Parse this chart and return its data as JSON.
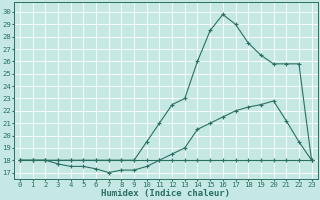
{
  "xlabel": "Humidex (Indice chaleur)",
  "bg_color": "#c5e8e5",
  "grid_color": "#ffffff",
  "line_color": "#2a7060",
  "x_ticks": [
    0,
    1,
    2,
    3,
    4,
    5,
    6,
    7,
    8,
    9,
    10,
    11,
    12,
    13,
    14,
    15,
    16,
    17,
    18,
    19,
    20,
    21,
    22,
    23
  ],
  "y_ticks": [
    17,
    18,
    19,
    20,
    21,
    22,
    23,
    24,
    25,
    26,
    27,
    28,
    29,
    30
  ],
  "ylim": [
    16.5,
    30.8
  ],
  "xlim": [
    -0.5,
    23.5
  ],
  "series": [
    {
      "x": [
        0,
        1,
        2,
        3,
        4,
        5,
        6,
        7,
        8,
        9,
        10,
        11,
        12,
        13,
        14,
        15,
        16,
        17,
        18,
        19,
        20,
        21,
        22,
        23
      ],
      "y": [
        18,
        18,
        18,
        18,
        18,
        18,
        18,
        18,
        18,
        18,
        18,
        18,
        18,
        18,
        18,
        18,
        18,
        18,
        18,
        18,
        18,
        18,
        18,
        18
      ]
    },
    {
      "x": [
        0,
        1,
        2,
        3,
        4,
        5,
        6,
        7,
        8,
        9,
        10,
        11,
        12,
        13,
        14,
        15,
        16,
        17,
        18,
        19,
        20,
        21,
        22,
        23
      ],
      "y": [
        18,
        18,
        18,
        17.7,
        17.5,
        17.5,
        17.3,
        17.0,
        17.2,
        17.2,
        17.5,
        18.0,
        18.5,
        19.0,
        20.5,
        21.0,
        21.5,
        22.0,
        22.3,
        22.5,
        22.8,
        21.2,
        19.5,
        18.0
      ]
    },
    {
      "x": [
        0,
        1,
        2,
        3,
        4,
        5,
        6,
        7,
        8,
        9,
        10,
        11,
        12,
        13,
        14,
        15,
        16,
        17,
        18,
        19,
        20,
        21,
        22,
        23
      ],
      "y": [
        18,
        18,
        18,
        18,
        18,
        18,
        18,
        18,
        18,
        18,
        19.5,
        21.0,
        22.5,
        23.0,
        26.0,
        28.5,
        29.8,
        29.0,
        27.5,
        26.5,
        25.8,
        25.8,
        25.8,
        18.0
      ]
    }
  ],
  "title_fontsize": 6.5,
  "tick_fontsize": 5.2,
  "label_fontsize": 6.5
}
